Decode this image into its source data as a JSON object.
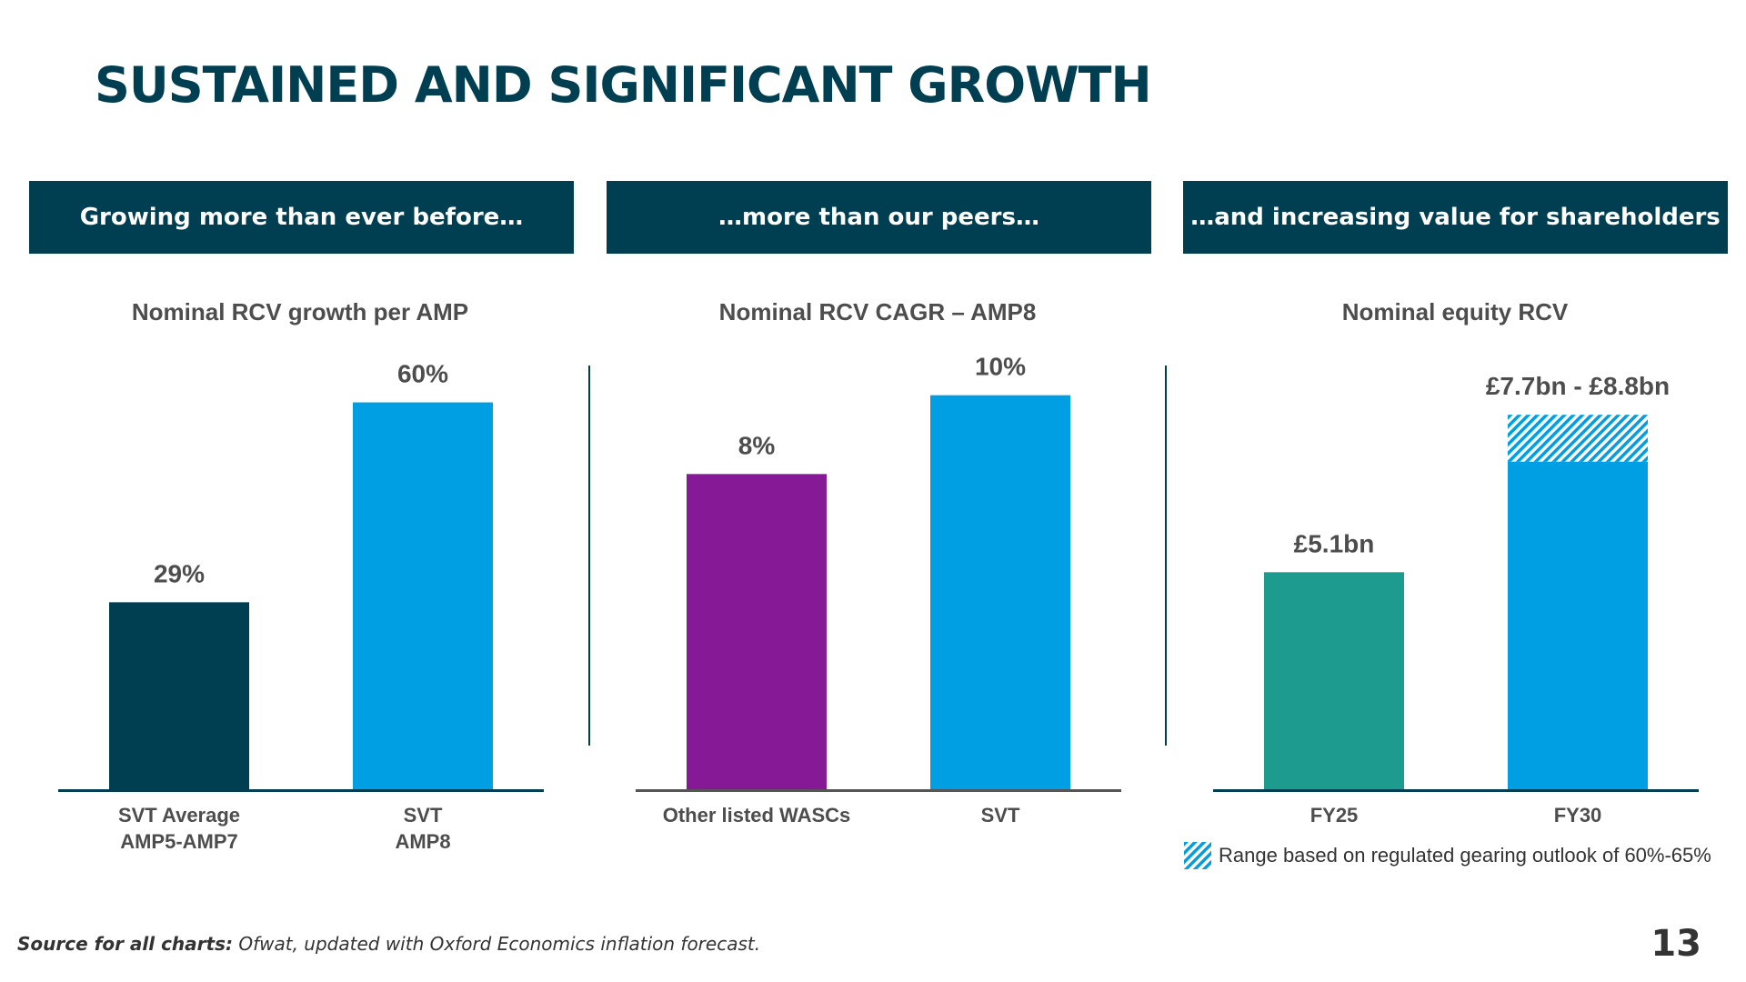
{
  "page": {
    "title": "SUSTAINED AND SIGNIFICANT GROWTH",
    "page_number": "13"
  },
  "banners": [
    "Growing more than ever before…",
    "…more than our peers…",
    "…and increasing value for shareholders"
  ],
  "colors": {
    "navy": "#003e51",
    "blue": "#009fe3",
    "purple": "#861996",
    "teal": "#1c9b8e",
    "text": "#4d4d4d"
  },
  "chart_data": [
    {
      "type": "bar",
      "title": "Nominal RCV growth per AMP",
      "categories": [
        "SVT Average AMP5-AMP7",
        "SVT AMP8"
      ],
      "category_lines": [
        [
          "SVT Average",
          "AMP5-AMP7"
        ],
        [
          "SVT",
          "AMP8"
        ]
      ],
      "values": [
        29,
        60
      ],
      "labels": [
        "29%",
        "60%"
      ],
      "colors": [
        "#003e51",
        "#009fe3"
      ],
      "unit": "%",
      "ylim": [
        0,
        66
      ],
      "grid": false,
      "baseline_color": "#003e51"
    },
    {
      "type": "bar",
      "title": "Nominal RCV CAGR – AMP8",
      "categories": [
        "Other listed WASCs",
        "SVT"
      ],
      "category_lines": [
        [
          "Other listed WASCs"
        ],
        [
          "SVT"
        ]
      ],
      "values": [
        8,
        10
      ],
      "labels": [
        "8%",
        "10%"
      ],
      "colors": [
        "#861996",
        "#009fe3"
      ],
      "unit": "%",
      "ylim": [
        0,
        10.8
      ],
      "grid": false,
      "baseline_color": "#555555"
    },
    {
      "type": "bar",
      "title": "Nominal equity RCV",
      "categories": [
        "FY25",
        "FY30"
      ],
      "category_lines": [
        [
          "FY25"
        ],
        [
          "FY30"
        ]
      ],
      "values": [
        5.1,
        7.7
      ],
      "range_high": [
        null,
        8.8
      ],
      "labels": [
        "£5.1bn",
        "£7.7bn - £8.8bn"
      ],
      "colors": [
        "#1c9b8e",
        "#009fe3"
      ],
      "unit": "£bn",
      "ylim": [
        0,
        10
      ],
      "grid": false,
      "baseline_color": "#003e51",
      "legend": {
        "label": "Range based on regulated gearing outlook of 60%-65%",
        "position": "bottom"
      }
    }
  ],
  "footer": {
    "source_prefix": "Source for all charts:",
    "source_text": " Ofwat, updated with Oxford Economics inflation forecast."
  }
}
